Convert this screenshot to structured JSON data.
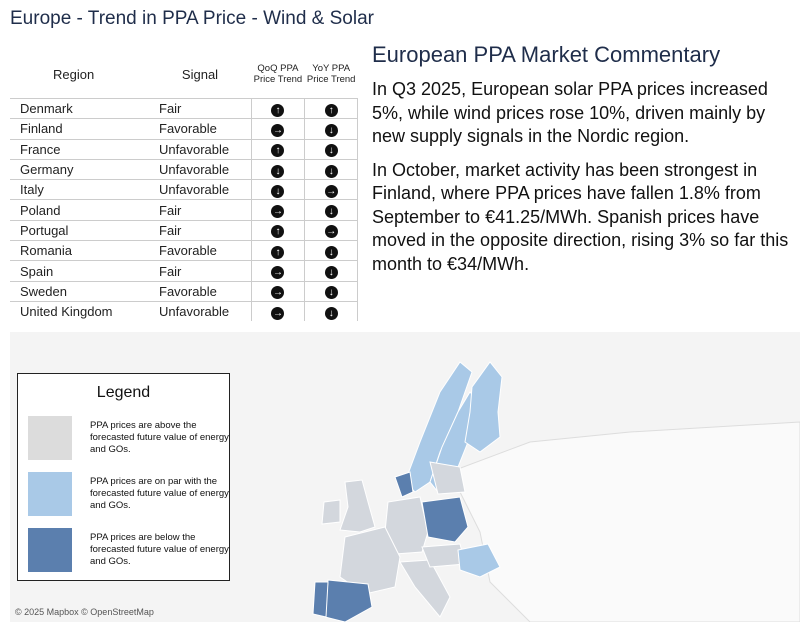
{
  "header": {
    "title": "Europe - Trend in PPA Price - Wind & Solar"
  },
  "table": {
    "columns": [
      "Region",
      "Signal",
      "QoQ PPA Price Trend",
      "YoY PPA Price Trend"
    ],
    "rows": [
      [
        "Denmark",
        "Fair",
        "↑",
        "↑"
      ],
      [
        "Finland",
        "Favorable",
        "→",
        "↓"
      ],
      [
        "France",
        "Unfavorable",
        "↑",
        "↓"
      ],
      [
        "Germany",
        "Unfavorable",
        "↓",
        "↓"
      ],
      [
        "Italy",
        "Unfavorable",
        "↓",
        "→"
      ],
      [
        "Poland",
        "Fair",
        "→",
        "↓"
      ],
      [
        "Portugal",
        "Fair",
        "↑",
        "→"
      ],
      [
        "Romania",
        "Favorable",
        "↑",
        "↓"
      ],
      [
        "Spain",
        "Fair",
        "→",
        "↓"
      ],
      [
        "Sweden",
        "Favorable",
        "→",
        "↓"
      ],
      [
        "United Kingdom",
        "Unfavorable",
        "→",
        "↓"
      ]
    ]
  },
  "commentary": {
    "title": "European PPA Market Commentary",
    "paragraphs": [
      "In Q3 2025, European solar PPA prices increased 5%, while wind prices rose 10%, driven mainly by new supply signals in the Nordic region.",
      "In October, market activity has been strongest in Finland, where PPA prices have fallen 1.8% from September to €41.25/MWh. Spanish prices have moved in the opposite direction, rising 3% so far this month to €34/MWh."
    ]
  },
  "legend": {
    "title": "Legend",
    "items": [
      "PPA prices are above the forecasted future value of energy and GOs.",
      "PPA prices are on par with the forecasted future value of energy and GOs.",
      "PPA prices are below the forecasted future value of energy and GOs."
    ]
  },
  "map": {
    "attribution": "© 2025 Mapbox © OpenStreetMap"
  }
}
